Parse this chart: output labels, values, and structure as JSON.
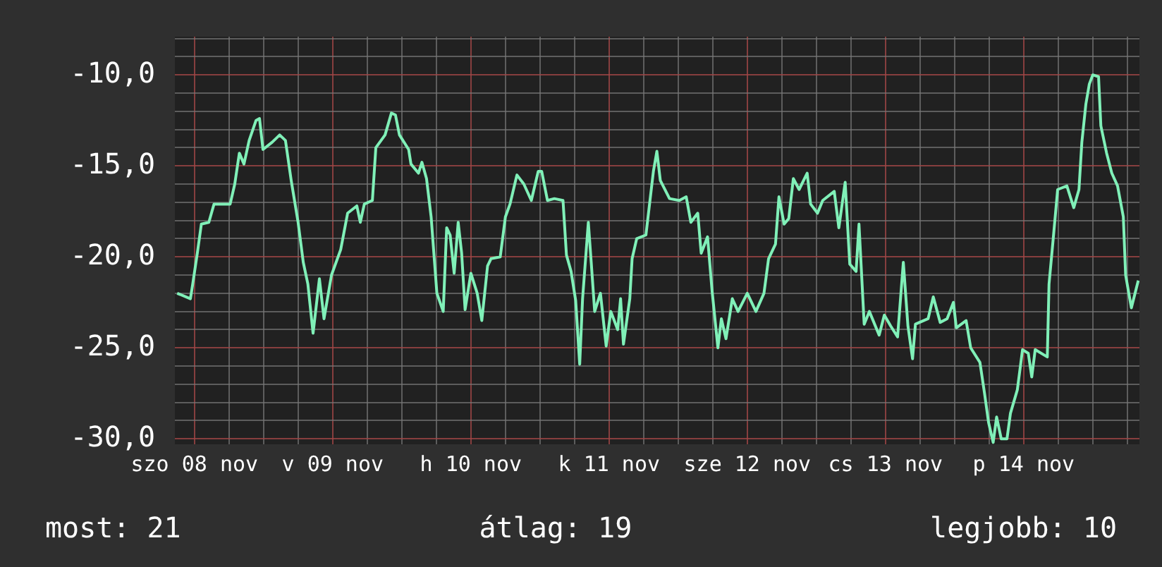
{
  "chart_data": {
    "type": "line",
    "x": [
      "--11-07T21:00",
      "--11-07T23:18",
      "--11-07T23:42",
      "--11-08T00:30",
      "--11-08T01:12",
      "--11-08T02:30",
      "--11-08T03:24",
      "--11-08T06:12",
      "--11-08T07:00",
      "--11-08T07:48",
      "--11-08T08:36",
      "--11-08T09:30",
      "--11-08T10:42",
      "--11-08T11:18",
      "--11-08T11:54",
      "--11-08T13:30",
      "--11-08T14:48",
      "--11-08T15:48",
      "--11-08T16:48",
      "--11-08T18:00",
      "--11-08T18:54",
      "--11-08T19:42",
      "--11-08T20:36",
      "--11-08T21:42",
      "--11-08T22:30",
      "--11-08T23:48",
      "--11-09T01:24",
      "--11-09T02:36",
      "--11-09T04:12",
      "--11-09T04:48",
      "--11-09T05:30",
      "--11-09T06:54",
      "--11-09T07:30",
      "--11-09T09:06",
      "--11-09T10:12",
      "--11-09T10:54",
      "--11-09T11:36",
      "--11-09T13:12",
      "--11-09T13:36",
      "--11-09T14:54",
      "--11-09T15:30",
      "--11-09T16:18",
      "--11-09T17:06",
      "--11-09T18:06",
      "--11-09T19:12",
      "--11-09T19:48",
      "--11-09T20:24",
      "--11-09T21:06",
      "--11-09T21:48",
      "--11-09T22:24",
      "--11-09T23:00",
      "--11-10T00:00",
      "--11-10T01:06",
      "--11-10T01:54",
      "--11-10T02:54",
      "--11-10T03:30",
      "--11-10T05:06",
      "--11-10T06:00",
      "--11-10T06:48",
      "--11-10T08:00",
      "--11-10T09:12",
      "--11-10T10:30",
      "--11-10T11:42",
      "--11-10T12:18",
      "--11-10T13:18",
      "--11-10T14:30",
      "--11-10T16:00",
      "--11-10T16:36",
      "--11-10T17:24",
      "--11-10T18:12",
      "--11-10T18:54",
      "--11-10T19:24",
      "--11-10T20:24",
      "--11-10T20:54",
      "--11-10T21:30",
      "--11-10T22:30",
      "--11-10T23:30",
      "--11-11T00:18",
      "--11-11T01:30",
      "--11-11T02:00",
      "--11-11T02:30",
      "--11-11T03:36",
      "--11-11T04:00",
      "--11-11T04:48",
      "--11-11T06:24",
      "--11-11T07:42",
      "--11-11T08:18",
      "--11-11T08:54",
      "--11-11T10:30",
      "--11-11T12:12",
      "--11-11T13:24",
      "--11-11T14:12",
      "--11-11T15:24",
      "--11-11T16:00",
      "--11-11T17:06",
      "--11-11T17:54",
      "--11-11T18:54",
      "--11-11T19:30",
      "--11-11T20:18",
      "--11-11T21:24",
      "--11-11T22:24",
      "--11-12T00:00",
      "--11-12T01:30",
      "--11-12T02:54",
      "--11-12T03:42",
      "--11-12T04:54",
      "--11-12T05:30",
      "--11-12T06:24",
      "--11-12T07:12",
      "--11-12T08:00",
      "--11-12T09:00",
      "--11-12T10:24",
      "--11-12T11:00",
      "--11-12T12:12",
      "--11-12T13:06",
      "--11-12T15:06",
      "--11-12T15:54",
      "--11-12T17:00",
      "--11-12T17:48",
      "--11-12T18:54",
      "--11-12T19:24",
      "--11-12T20:18",
      "--11-12T21:12",
      "--11-12T22:54",
      "--11-12T23:48",
      "--11-13T00:54",
      "--11-13T02:06",
      "--11-13T03:06",
      "--11-13T03:54",
      "--11-13T04:42",
      "--11-13T05:12",
      "--11-13T07:24",
      "--11-13T08:18",
      "--11-13T09:30",
      "--11-13T10:42",
      "--11-13T11:48",
      "--11-13T12:18",
      "--11-13T14:00",
      "--11-13T14:48",
      "--11-13T16:24",
      "--11-13T17:12",
      "--11-13T17:54",
      "--11-13T18:42",
      "--11-13T19:18",
      "--11-13T20:06",
      "--11-13T21:06",
      "--11-13T21:42",
      "--11-13T22:54",
      "--11-13T23:48",
      "--11-14T00:48",
      "--11-14T01:24",
      "--11-14T02:00",
      "--11-14T04:06",
      "--11-14T04:24",
      "--11-14T05:06",
      "--11-14T05:54",
      "--11-14T07:30",
      "--11-14T08:42",
      "--11-14T09:36",
      "--11-14T10:06",
      "--11-14T10:48",
      "--11-14T11:24",
      "--11-14T12:00",
      "--11-14T13:00",
      "--11-14T13:24",
      "--11-14T14:24",
      "--11-14T15:18",
      "--11-14T16:18",
      "--11-14T17:18",
      "--11-14T17:42",
      "--11-14T18:42",
      "--11-14T19:54"
    ],
    "series": [
      {
        "color": "#80f0b8",
        "values": [
          -22.0,
          -22.3,
          -21.5,
          -19.8,
          -18.2,
          -18.1,
          -17.1,
          -17.1,
          -16.0,
          -14.3,
          -14.9,
          -13.6,
          -12.5,
          -12.4,
          -14.1,
          -13.7,
          -13.3,
          -13.6,
          -15.8,
          -18.1,
          -20.3,
          -21.5,
          -24.2,
          -21.2,
          -23.4,
          -21.0,
          -19.6,
          -17.6,
          -17.2,
          -18.1,
          -17.1,
          -16.9,
          -14.0,
          -13.3,
          -12.1,
          -12.2,
          -13.3,
          -14.1,
          -14.9,
          -15.4,
          -14.8,
          -15.7,
          -17.8,
          -22.0,
          -23.0,
          -18.4,
          -18.8,
          -20.9,
          -18.1,
          -19.8,
          -22.9,
          -20.9,
          -22.0,
          -23.5,
          -20.5,
          -20.1,
          -20.0,
          -17.8,
          -17.1,
          -15.5,
          -16.0,
          -16.9,
          -15.3,
          -15.3,
          -16.9,
          -16.8,
          -16.9,
          -19.9,
          -20.8,
          -22.4,
          -25.9,
          -22.3,
          -18.1,
          -20.3,
          -23.0,
          -22.0,
          -24.9,
          -23.0,
          -24.0,
          -22.3,
          -24.8,
          -22.3,
          -20.1,
          -19.0,
          -18.8,
          -15.3,
          -14.2,
          -15.8,
          -16.8,
          -16.9,
          -16.7,
          -18.1,
          -17.6,
          -19.8,
          -18.9,
          -21.9,
          -25.0,
          -23.4,
          -24.5,
          -22.3,
          -23.0,
          -22.0,
          -23.0,
          -22.0,
          -20.1,
          -19.3,
          -16.7,
          -18.2,
          -17.9,
          -15.7,
          -16.3,
          -15.4,
          -17.1,
          -17.6,
          -16.9,
          -16.4,
          -18.4,
          -15.9,
          -20.4,
          -20.8,
          -18.2,
          -23.7,
          -23.0,
          -24.3,
          -23.2,
          -23.8,
          -24.4,
          -20.3,
          -23.8,
          -25.6,
          -23.7,
          -23.4,
          -22.2,
          -23.6,
          -23.4,
          -22.5,
          -23.9,
          -23.5,
          -25.0,
          -25.8,
          -27.5,
          -29.1,
          -30.2,
          -28.8,
          -30.0,
          -30.0,
          -28.6,
          -27.3,
          -25.1,
          -25.3,
          -26.6,
          -25.1,
          -25.5,
          -21.5,
          -19.1,
          -16.3,
          -16.1,
          -17.3,
          -16.3,
          -13.7,
          -11.6,
          -10.5,
          -10.0,
          -10.1,
          -12.8,
          -14.3,
          -15.4,
          -16.1,
          -17.8,
          -21.0,
          -22.8,
          -21.3
        ]
      }
    ],
    "xlim": [
      "--11-07T20:36",
      "--11-14T20:06"
    ],
    "xticks": [
      {
        "value": "--11-08T00:00",
        "label": "szo 08 nov"
      },
      {
        "value": "--11-08T06:00",
        "label": null
      },
      {
        "value": "--11-08T12:00",
        "label": null
      },
      {
        "value": "--11-08T18:00",
        "label": null
      },
      {
        "value": "--11-09T00:00",
        "label": "v 09 nov"
      },
      {
        "value": "--11-09T06:00",
        "label": null
      },
      {
        "value": "--11-09T12:00",
        "label": null
      },
      {
        "value": "--11-09T18:00",
        "label": null
      },
      {
        "value": "--11-10T00:00",
        "label": "h 10 nov"
      },
      {
        "value": "--11-10T06:00",
        "label": null
      },
      {
        "value": "--11-10T12:00",
        "label": null
      },
      {
        "value": "--11-10T18:00",
        "label": null
      },
      {
        "value": "--11-11T00:00",
        "label": "k 11 nov"
      },
      {
        "value": "--11-11T06:00",
        "label": null
      },
      {
        "value": "--11-11T12:00",
        "label": null
      },
      {
        "value": "--11-11T18:00",
        "label": null
      },
      {
        "value": "--11-12T00:00",
        "label": "sze 12 nov"
      },
      {
        "value": "--11-12T06:00",
        "label": null
      },
      {
        "value": "--11-12T12:00",
        "label": null
      },
      {
        "value": "--11-12T18:00",
        "label": null
      },
      {
        "value": "--11-13T00:00",
        "label": "cs 13 nov"
      },
      {
        "value": "--11-13T06:00",
        "label": null
      },
      {
        "value": "--11-13T12:00",
        "label": null
      },
      {
        "value": "--11-13T18:00",
        "label": null
      },
      {
        "value": "--11-14T00:00",
        "label": "p 14 nov"
      },
      {
        "value": "--11-14T06:00",
        "label": null
      },
      {
        "value": "--11-14T12:00",
        "label": null
      },
      {
        "value": "--11-14T18:00",
        "label": null
      }
    ],
    "ylim": [
      -30.3,
      -7.9
    ],
    "yticks": [
      {
        "value": -30,
        "label": "-30,0"
      },
      {
        "value": -29,
        "label": null
      },
      {
        "value": -28,
        "label": null
      },
      {
        "value": -27,
        "label": null
      },
      {
        "value": -26,
        "label": null
      },
      {
        "value": -25,
        "label": "-25,0"
      },
      {
        "value": -24,
        "label": null
      },
      {
        "value": -23,
        "label": null
      },
      {
        "value": -22,
        "label": null
      },
      {
        "value": -21,
        "label": null
      },
      {
        "value": -20,
        "label": "-20,0"
      },
      {
        "value": -19,
        "label": null
      },
      {
        "value": -18,
        "label": null
      },
      {
        "value": -17,
        "label": null
      },
      {
        "value": -16,
        "label": null
      },
      {
        "value": -15,
        "label": "-15,0"
      },
      {
        "value": -14,
        "label": null
      },
      {
        "value": -13,
        "label": null
      },
      {
        "value": -12,
        "label": null
      },
      {
        "value": -11,
        "label": null
      },
      {
        "value": -10,
        "label": "-10,0"
      },
      {
        "value": -9,
        "label": null
      },
      {
        "value": -8,
        "label": null
      }
    ],
    "grid": true,
    "annotations": [
      "most: 21",
      "átlag: 19",
      "legjobb: 10"
    ]
  }
}
